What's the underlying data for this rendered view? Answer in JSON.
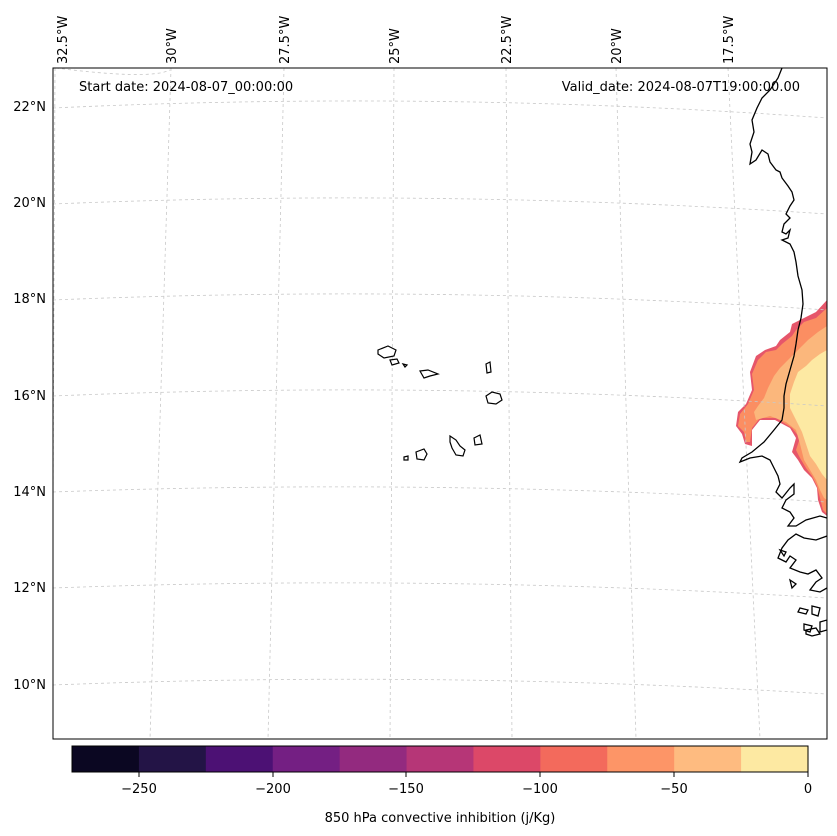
{
  "map": {
    "start_label": "Start date: 2024-08-07_00:00:00",
    "valid_label": "Valid_date: 2024-08-07T19:00:00.00",
    "lon_labels": [
      "32.5°W",
      "30°W",
      "27.5°W",
      "25°W",
      "22.5°W",
      "20°W",
      "17.5°W"
    ],
    "lat_labels": [
      "22°N",
      "20°N",
      "18°N",
      "16°N",
      "14°N",
      "12°N",
      "10°N"
    ]
  },
  "colorbar": {
    "title": "850 hPa convective inhibition (j/Kg)",
    "ticks": [
      "−250",
      "−200",
      "−150",
      "−100",
      "−50",
      "0"
    ],
    "colors": [
      "#0b0722",
      "#231446",
      "#4c1174",
      "#741f83",
      "#932a7f",
      "#b63677",
      "#dc4868",
      "#f36a5c",
      "#fd9567",
      "#febb80",
      "#fde9a2"
    ]
  },
  "field_colors": {
    "outer": "#fb8e62",
    "mid": "#fbb77c",
    "inner": "#fde9a3",
    "edge": "#e6566a"
  }
}
